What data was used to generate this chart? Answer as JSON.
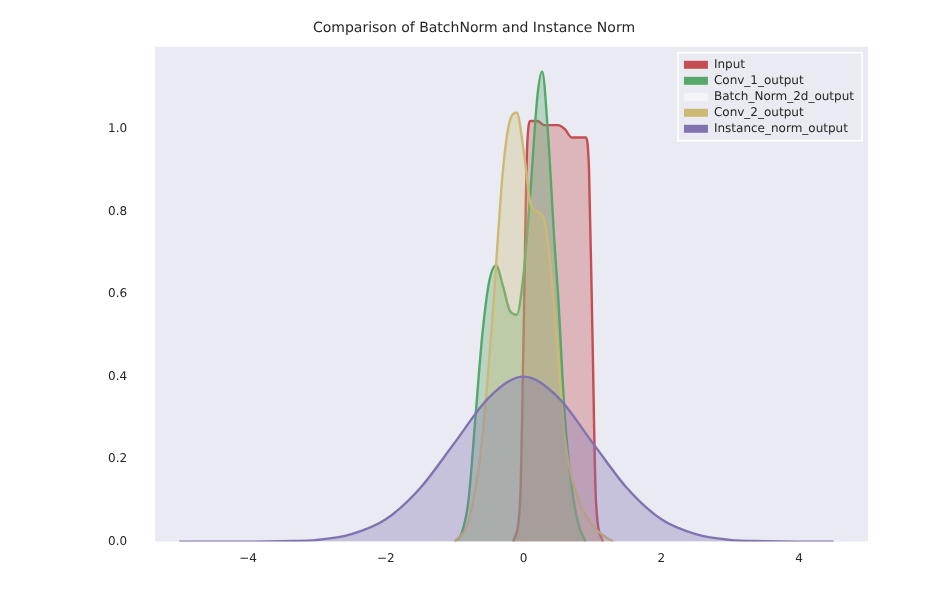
{
  "chart_data": {
    "type": "area",
    "title": "Comparison of BatchNorm and Instance Norm",
    "xlim": [
      -5.35,
      5.0
    ],
    "ylim": [
      0,
      1.2
    ],
    "xticks": [
      {
        "value": -4,
        "label": "−4"
      },
      {
        "value": -2,
        "label": "−2"
      },
      0,
      2,
      4
    ],
    "yticks": [
      {
        "value": 0,
        "label": "0.0"
      },
      0.2,
      0.4,
      0.6,
      0.8,
      {
        "value": 1,
        "label": "1.0"
      }
    ],
    "grid": false,
    "legend": "top right",
    "marker": "none",
    "series": [
      {
        "name": "Input",
        "color": "#c44e52",
        "x": [
          -0.15,
          -0.05,
          0,
          0.05,
          0.1,
          0.2,
          0.3,
          0.4,
          0.5,
          0.6,
          0.7,
          0.8,
          0.9,
          0.95,
          1.0,
          1.05,
          1.15
        ],
        "values": [
          0,
          0.1,
          0.5,
          0.95,
          1.02,
          1.02,
          1.01,
          1.01,
          1.01,
          1.0,
          0.98,
          0.98,
          0.98,
          0.9,
          0.5,
          0.1,
          0
        ]
      },
      {
        "name": "Conv_1_output",
        "color": "#55a868",
        "x": [
          -1.0,
          -0.9,
          -0.8,
          -0.7,
          -0.6,
          -0.5,
          -0.4,
          -0.3,
          -0.2,
          -0.1,
          0,
          0.1,
          0.2,
          0.27,
          0.35,
          0.45,
          0.5,
          0.6,
          0.7,
          0.8,
          0.9
        ],
        "values": [
          0,
          0.02,
          0.1,
          0.3,
          0.5,
          0.63,
          0.67,
          0.62,
          0.56,
          0.55,
          0.65,
          0.85,
          1.08,
          1.14,
          1.0,
          0.72,
          0.6,
          0.3,
          0.13,
          0.04,
          0
        ]
      },
      {
        "name": "Batch_Norm_2d_output",
        "color": "#f4f4f8"
      },
      {
        "name": "Conv_2_output",
        "color": "#ccb974",
        "x": [
          -1.0,
          -0.8,
          -0.6,
          -0.45,
          -0.3,
          -0.2,
          -0.1,
          0,
          0.1,
          0.2,
          0.3,
          0.4,
          0.5,
          0.6,
          0.8,
          1.0,
          1.2,
          1.3
        ],
        "values": [
          0,
          0.05,
          0.25,
          0.55,
          0.9,
          1.02,
          1.04,
          0.95,
          0.82,
          0.8,
          0.78,
          0.65,
          0.45,
          0.25,
          0.1,
          0.04,
          0.01,
          0
        ]
      },
      {
        "name": "Instance_norm_output",
        "color": "#8172b2",
        "x": [
          -5,
          -4.5,
          -4,
          -3.5,
          -3,
          -2.5,
          -2,
          -1.5,
          -1,
          -0.5,
          0,
          0.5,
          1,
          1.5,
          2,
          2.5,
          3,
          3.5,
          4,
          4.5
        ],
        "values": [
          0,
          0,
          0,
          0.001,
          0.004,
          0.018,
          0.054,
          0.13,
          0.24,
          0.35,
          0.4,
          0.35,
          0.24,
          0.13,
          0.054,
          0.018,
          0.004,
          0.001,
          0,
          0
        ]
      }
    ]
  }
}
